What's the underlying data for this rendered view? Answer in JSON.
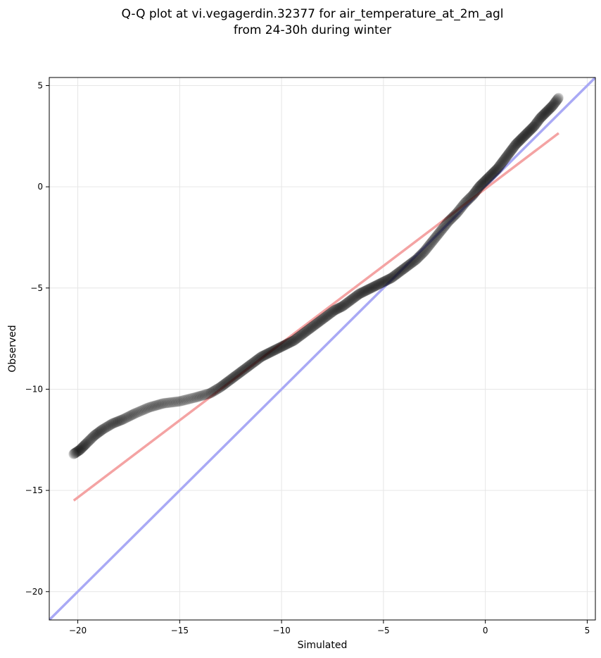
{
  "chart_data": {
    "type": "scatter",
    "title_line1": "Q-Q plot at vi.vegagerdin.32377 for air_temperature_at_2m_agl",
    "title_line2": "from 24-30h during winter",
    "xlabel": "Simulated",
    "ylabel": "Observed",
    "xlim": [
      -21.4,
      5.4
    ],
    "ylim": [
      -21.4,
      5.4
    ],
    "xticks": [
      -20,
      -15,
      -10,
      -5,
      0,
      5
    ],
    "yticks": [
      -20,
      -15,
      -10,
      -5,
      0,
      5
    ],
    "xtick_labels": [
      "−20",
      "−15",
      "−10",
      "−5",
      "0",
      "5"
    ],
    "ytick_labels": [
      "−20",
      "−15",
      "−10",
      "−5",
      "0",
      "5"
    ],
    "grid": true,
    "quantile_points": {
      "x": [
        -20.2,
        -19.9,
        -19.6,
        -19.2,
        -18.8,
        -18.3,
        -17.8,
        -17.2,
        -16.5,
        -15.8,
        -15.0,
        -14.2,
        -13.5,
        -13.0,
        -12.6,
        -12.2,
        -11.8,
        -11.4,
        -11.0,
        -10.6,
        -10.2,
        -9.8,
        -9.4,
        -9.0,
        -8.6,
        -8.2,
        -7.8,
        -7.4,
        -7.0,
        -6.6,
        -6.2,
        -5.8,
        -5.4,
        -5.0,
        -4.6,
        -4.2,
        -3.8,
        -3.4,
        -3.0,
        -2.6,
        -2.2,
        -1.8,
        -1.4,
        -1.0,
        -0.6,
        -0.3,
        0.0,
        0.3,
        0.6,
        0.9,
        1.2,
        1.5,
        1.8,
        2.1,
        2.4,
        2.7,
        3.0,
        3.3,
        3.6
      ],
      "y": [
        -13.2,
        -13.0,
        -12.7,
        -12.3,
        -12.0,
        -11.7,
        -11.5,
        -11.2,
        -10.9,
        -10.7,
        -10.6,
        -10.4,
        -10.2,
        -9.9,
        -9.6,
        -9.3,
        -9.0,
        -8.7,
        -8.4,
        -8.2,
        -8.0,
        -7.8,
        -7.6,
        -7.3,
        -7.0,
        -6.7,
        -6.4,
        -6.1,
        -5.9,
        -5.6,
        -5.3,
        -5.1,
        -4.9,
        -4.7,
        -4.5,
        -4.2,
        -3.9,
        -3.6,
        -3.2,
        -2.7,
        -2.2,
        -1.7,
        -1.3,
        -0.8,
        -0.4,
        0.0,
        0.3,
        0.6,
        0.9,
        1.3,
        1.7,
        2.1,
        2.4,
        2.7,
        3.0,
        3.4,
        3.7,
        4.0,
        4.4
      ]
    },
    "series": [
      {
        "color": "#000000",
        "opacity": 0.12
      },
      {
        "line": "linear-fit",
        "color": "#f4a3a3",
        "x": [
          -20.2,
          3.6
        ],
        "y": [
          -15.5,
          2.65
        ]
      },
      {
        "line": "identity",
        "color": "#a9a9f5",
        "x": [
          -21.4,
          5.4
        ],
        "y": [
          -21.4,
          5.4
        ]
      }
    ]
  }
}
